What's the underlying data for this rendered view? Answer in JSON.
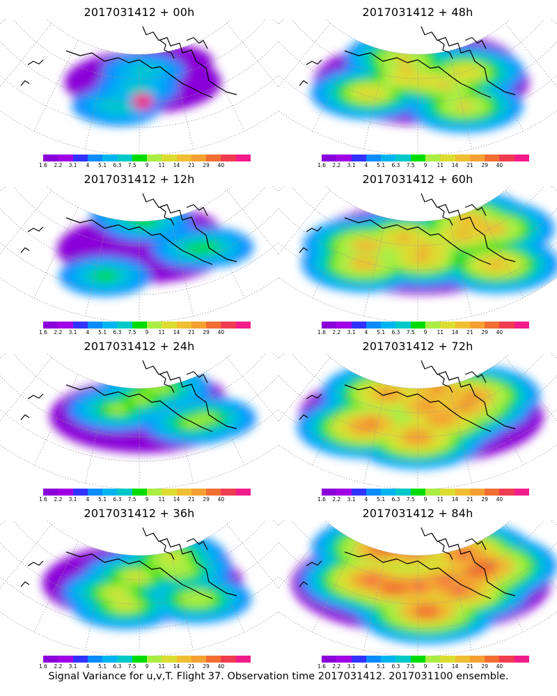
{
  "footer": "Signal Variance for u,v,T. Flight 37. Observation time 2017031412. 2017031100 ensemble.",
  "colorbar": {
    "labels": [
      "1.6",
      "2.2",
      "3.1",
      "4",
      "5.1",
      "6.3",
      "7.5",
      "9",
      "11",
      "14",
      "21",
      "29",
      "40"
    ],
    "colors": [
      "#8a00d8",
      "#a000e6",
      "#3232ff",
      "#0a8cff",
      "#00b4f0",
      "#00c8c8",
      "#00dc00",
      "#aaee44",
      "#dcdc32",
      "#f0be32",
      "#f5a032",
      "#f06e32",
      "#f03c50",
      "#f01c8c"
    ]
  },
  "panels": [
    {
      "title": "2017031412 + 00h",
      "intensity": 0
    },
    {
      "title": "2017031412 + 48h",
      "intensity": 4
    },
    {
      "title": "2017031412 + 12h",
      "intensity": 1
    },
    {
      "title": "2017031412 + 60h",
      "intensity": 5
    },
    {
      "title": "2017031412 + 24h",
      "intensity": 2
    },
    {
      "title": "2017031412 + 72h",
      "intensity": 6
    },
    {
      "title": "2017031412 + 36h",
      "intensity": 3
    },
    {
      "title": "2017031412 + 84h",
      "intensity": 7
    }
  ]
}
